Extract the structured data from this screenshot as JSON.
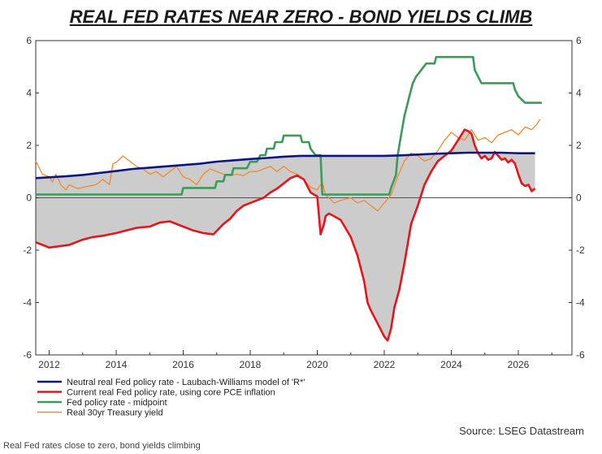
{
  "chart_data": {
    "type": "line",
    "title": "REAL FED RATES NEAR ZERO - BOND YIELDS CLIMB",
    "xlim": [
      2011.6,
      2027.6
    ],
    "ylim": [
      -6,
      6
    ],
    "x_ticks": [
      "2012",
      "2014",
      "2016",
      "2018",
      "2020",
      "2022",
      "2024",
      "2026"
    ],
    "y_ticks": [
      "6",
      "4",
      "2",
      "0",
      "-2",
      "-4",
      "-6"
    ],
    "grid": false,
    "fill_between": [
      "Neutral real Fed policy rate - Laubach-Williams model of 'R*'",
      "Current real Fed policy rate, using core PCE inflation"
    ],
    "series": [
      {
        "name": "Neutral real Fed policy rate - Laubach-Williams model of 'R*'",
        "color": "#0d1580",
        "x": [
          2011.6,
          2012.0,
          2012.5,
          2013.0,
          2013.5,
          2014.0,
          2014.5,
          2015.0,
          2015.5,
          2016.0,
          2016.5,
          2017.0,
          2017.5,
          2018.0,
          2018.5,
          2019.0,
          2019.5,
          2020.0,
          2020.5,
          2021.0,
          2021.5,
          2022.0,
          2022.5,
          2023.0,
          2023.5,
          2024.0,
          2024.5,
          2025.0,
          2025.5,
          2026.0,
          2026.5
        ],
        "y": [
          0.75,
          0.78,
          0.82,
          0.87,
          0.95,
          1.02,
          1.1,
          1.15,
          1.2,
          1.25,
          1.3,
          1.38,
          1.43,
          1.48,
          1.52,
          1.57,
          1.6,
          1.6,
          1.6,
          1.6,
          1.6,
          1.6,
          1.62,
          1.65,
          1.68,
          1.7,
          1.72,
          1.72,
          1.72,
          1.7,
          1.7
        ]
      },
      {
        "name": "Current real Fed policy rate, using core PCE inflation",
        "color": "#e8141b",
        "x": [
          2011.6,
          2011.8,
          2012.0,
          2012.3,
          2012.6,
          2013.0,
          2013.3,
          2013.6,
          2014.0,
          2014.3,
          2014.6,
          2015.0,
          2015.3,
          2015.6,
          2016.0,
          2016.3,
          2016.6,
          2016.9,
          2017.2,
          2017.4,
          2017.6,
          2017.8,
          2018.0,
          2018.2,
          2018.4,
          2018.6,
          2018.8,
          2019.0,
          2019.2,
          2019.4,
          2019.6,
          2019.8,
          2020.0,
          2020.1,
          2020.2,
          2020.25,
          2020.35,
          2020.5,
          2020.7,
          2021.0,
          2021.2,
          2021.4,
          2021.5,
          2021.6,
          2021.8,
          2022.0,
          2022.1,
          2022.2,
          2022.3,
          2022.45,
          2022.6,
          2022.8,
          2023.0,
          2023.2,
          2023.4,
          2023.6,
          2023.8,
          2024.0,
          2024.2,
          2024.4,
          2024.5,
          2024.6,
          2024.7,
          2024.8,
          2024.9,
          2025.0,
          2025.1,
          2025.2,
          2025.3,
          2025.4,
          2025.5,
          2025.6,
          2025.7,
          2025.8,
          2025.9,
          2026.0,
          2026.1,
          2026.2,
          2026.3,
          2026.4,
          2026.5
        ],
        "y": [
          -1.7,
          -1.8,
          -1.9,
          -1.85,
          -1.8,
          -1.6,
          -1.5,
          -1.45,
          -1.35,
          -1.25,
          -1.15,
          -1.1,
          -0.95,
          -0.9,
          -1.1,
          -1.25,
          -1.35,
          -1.4,
          -1.0,
          -0.8,
          -0.5,
          -0.3,
          -0.2,
          -0.1,
          0.0,
          0.2,
          0.35,
          0.55,
          0.75,
          0.85,
          0.7,
          0.2,
          0.05,
          -1.4,
          -1.0,
          -0.7,
          -0.6,
          -0.7,
          -0.85,
          -1.5,
          -2.2,
          -3.2,
          -4.0,
          -4.3,
          -4.8,
          -5.3,
          -5.45,
          -5.0,
          -4.2,
          -3.5,
          -2.5,
          -1.0,
          -0.3,
          0.5,
          1.0,
          1.4,
          1.6,
          1.8,
          2.2,
          2.6,
          2.55,
          2.45,
          2.0,
          1.7,
          1.5,
          1.6,
          1.45,
          1.5,
          1.75,
          1.6,
          1.45,
          1.5,
          1.35,
          1.45,
          1.3,
          0.9,
          0.55,
          0.45,
          0.5,
          0.25,
          0.35
        ]
      },
      {
        "name": "Fed policy rate - midpoint",
        "color": "#3c9a5a",
        "x": [
          2011.6,
          2015.95,
          2016.0,
          2016.95,
          2017.0,
          2017.2,
          2017.25,
          2017.45,
          2017.5,
          2017.9,
          2018.0,
          2018.2,
          2018.3,
          2018.45,
          2018.5,
          2018.7,
          2018.75,
          2018.95,
          2019.0,
          2019.5,
          2019.55,
          2019.75,
          2019.8,
          2019.95,
          2020.1,
          2020.15,
          2022.15,
          2022.2,
          2022.35,
          2022.4,
          2022.5,
          2022.6,
          2022.75,
          2022.85,
          2022.95,
          2023.1,
          2023.25,
          2023.5,
          2023.55,
          2024.65,
          2024.7,
          2024.8,
          2024.9,
          2025.0,
          2025.85,
          2025.9,
          2026.0,
          2026.2,
          2026.7
        ],
        "y": [
          0.125,
          0.125,
          0.375,
          0.375,
          0.625,
          0.625,
          0.875,
          0.875,
          1.125,
          1.125,
          1.375,
          1.375,
          1.625,
          1.625,
          1.875,
          1.875,
          2.125,
          2.125,
          2.375,
          2.375,
          2.125,
          2.125,
          1.875,
          1.625,
          1.625,
          0.125,
          0.125,
          0.375,
          0.875,
          1.625,
          2.375,
          3.125,
          3.875,
          4.375,
          4.625,
          4.875,
          5.125,
          5.125,
          5.375,
          5.375,
          4.875,
          4.625,
          4.375,
          4.375,
          4.375,
          4.125,
          3.875,
          3.625,
          3.625
        ]
      },
      {
        "name": "Real 30yr Treasury yield",
        "color": "#f28a2a",
        "x": [
          2011.6,
          2011.8,
          2012.0,
          2012.1,
          2012.2,
          2012.35,
          2012.5,
          2012.6,
          2012.75,
          2012.9,
          2013.0,
          2013.2,
          2013.4,
          2013.5,
          2013.6,
          2013.8,
          2013.9,
          2014.0,
          2014.2,
          2014.4,
          2014.6,
          2014.8,
          2015.0,
          2015.2,
          2015.4,
          2015.6,
          2015.8,
          2016.0,
          2016.2,
          2016.4,
          2016.6,
          2016.8,
          2017.0,
          2017.2,
          2017.4,
          2017.6,
          2017.8,
          2018.0,
          2018.2,
          2018.4,
          2018.6,
          2018.8,
          2019.0,
          2019.2,
          2019.4,
          2019.6,
          2019.8,
          2020.0,
          2020.15,
          2020.25,
          2020.35,
          2020.5,
          2020.7,
          2021.0,
          2021.2,
          2021.4,
          2021.6,
          2021.8,
          2022.0,
          2022.2,
          2022.4,
          2022.6,
          2022.8,
          2023.0,
          2023.2,
          2023.4,
          2023.6,
          2023.8,
          2024.0,
          2024.2,
          2024.4,
          2024.6,
          2024.8,
          2025.0,
          2025.2,
          2025.4,
          2025.6,
          2025.8,
          2026.0,
          2026.2,
          2026.4,
          2026.55,
          2026.65
        ],
        "y": [
          1.4,
          0.9,
          0.8,
          0.6,
          0.9,
          0.5,
          0.3,
          0.5,
          0.4,
          0.35,
          0.4,
          0.45,
          0.5,
          0.6,
          0.7,
          0.5,
          1.3,
          1.35,
          1.6,
          1.4,
          1.2,
          1.1,
          0.9,
          1.0,
          0.8,
          1.0,
          1.2,
          0.8,
          0.7,
          0.5,
          0.9,
          1.1,
          1.0,
          0.9,
          0.85,
          0.9,
          0.85,
          1.0,
          1.0,
          1.1,
          1.2,
          1.0,
          1.2,
          1.0,
          0.9,
          0.7,
          0.4,
          0.3,
          0.6,
          0.1,
          0.0,
          -0.2,
          -0.1,
          0.0,
          -0.2,
          -0.1,
          -0.3,
          -0.5,
          -0.2,
          0.1,
          0.8,
          1.4,
          1.7,
          1.6,
          1.4,
          1.5,
          1.8,
          2.2,
          2.5,
          2.3,
          2.2,
          2.6,
          2.2,
          2.3,
          2.1,
          2.4,
          2.5,
          2.6,
          2.4,
          2.7,
          2.6,
          2.8,
          3.0
        ]
      }
    ],
    "legend_position": "bottom-left"
  },
  "source_text": "Source: LSEG Datastream",
  "caption_text": "Real Fed rates close to zero, bond yields climbing"
}
